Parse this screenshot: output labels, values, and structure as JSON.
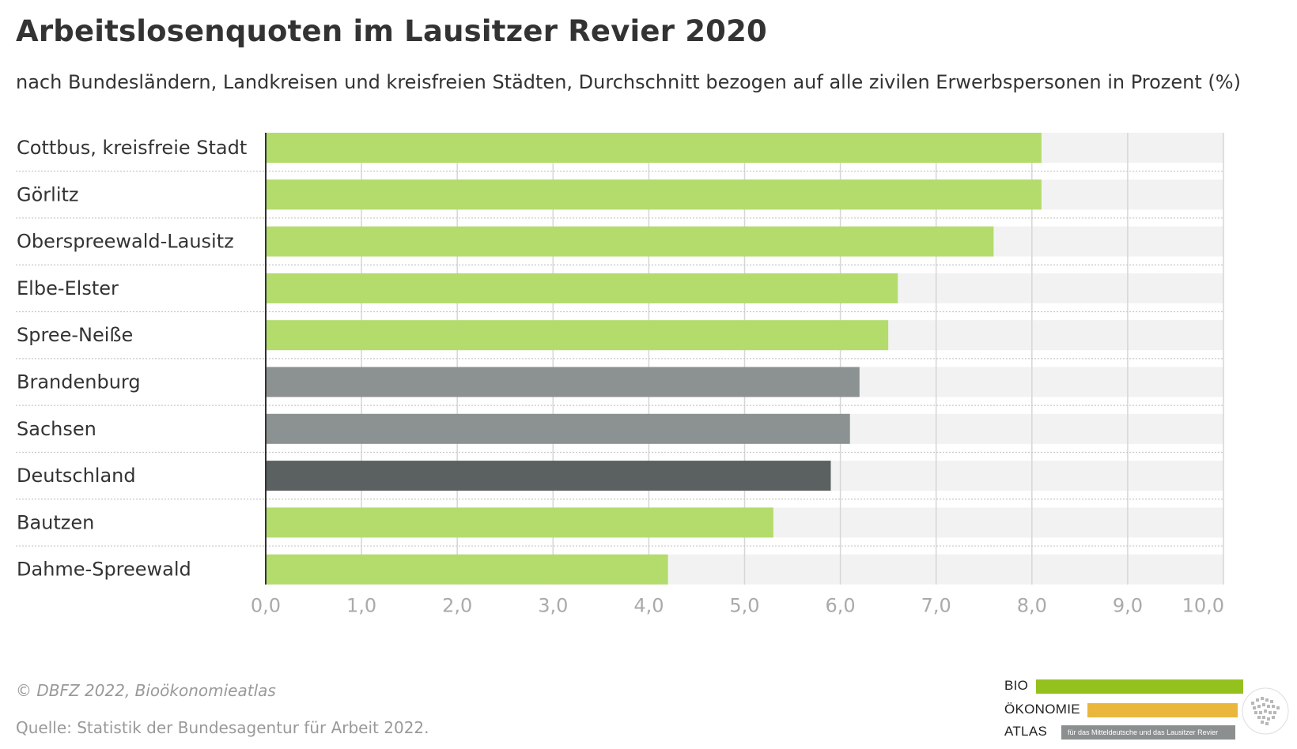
{
  "title": "Arbeitslosenquoten im Lausitzer Revier 2020",
  "subtitle": "nach Bundesländern, Landkreisen und kreisfreien Städten, Durchschnitt bezogen auf alle zivilen Erwerbspersonen in Prozent (%)",
  "credit": "© DBFZ 2022, Bioökonomieatlas",
  "source": "Quelle: Statistik der Bundesagentur für Arbeit 2022.",
  "logo": {
    "line1": "BIO",
    "line2": "ÖKONOMIE",
    "line3": "ATLAS",
    "tagline": "für das Mitteldeutsche und das Lausitzer Revier"
  },
  "colors": {
    "region": "#b3dc6c",
    "state": "#8c9191",
    "country": "#5b6161",
    "track": "#f2f2f2",
    "logo_green": "#95c11f",
    "logo_yellow": "#e9b73c"
  },
  "chart_data": {
    "type": "bar",
    "orientation": "horizontal",
    "categories": [
      "Cottbus, kreisfreie Stadt",
      "Görlitz",
      "Oberspreewald-Lausitz",
      "Elbe-Elster",
      "Spree-Neiße",
      "Brandenburg",
      "Sachsen",
      "Deutschland",
      "Bautzen",
      "Dahme-Spreewald"
    ],
    "values": [
      8.1,
      8.1,
      7.6,
      6.6,
      6.5,
      6.2,
      6.1,
      5.9,
      5.3,
      4.2
    ],
    "bar_colors": [
      "region",
      "region",
      "region",
      "region",
      "region",
      "state",
      "state",
      "country",
      "region",
      "region"
    ],
    "xlim": [
      0,
      10
    ],
    "xticks": [
      "0,0",
      "1,0",
      "2,0",
      "3,0",
      "4,0",
      "5,0",
      "6,0",
      "7,0",
      "8,0",
      "9,0",
      "10,0"
    ],
    "xlabel": "",
    "ylabel": "",
    "grid": true,
    "legend": "none"
  }
}
